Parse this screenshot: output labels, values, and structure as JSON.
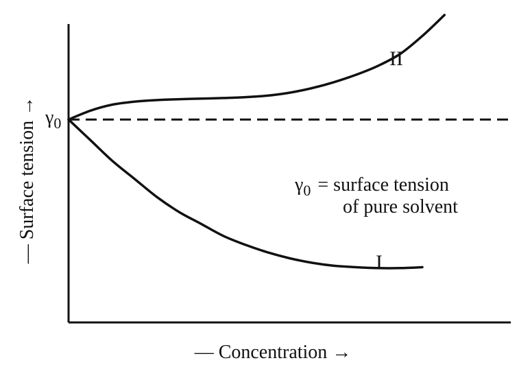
{
  "chart_data": {
    "type": "line",
    "title": "",
    "xlabel": "— Concentration →",
    "ylabel": "— Surface tension →",
    "xlim": [
      0,
      1
    ],
    "ylim": [
      0,
      1
    ],
    "grid": false,
    "reference_line": {
      "label": "γ",
      "label_subscript": "0",
      "y": 0.68,
      "style": "dashed"
    },
    "annotation": {
      "symbol": "γ",
      "subscript": "0",
      "text": "= surface tension",
      "text_line2": "of pure solvent"
    },
    "series": [
      {
        "name": "I",
        "x": [
          0,
          0.05,
          0.1,
          0.15,
          0.2,
          0.25,
          0.3,
          0.35,
          0.4,
          0.45,
          0.5,
          0.55,
          0.6,
          0.65,
          0.7,
          0.75,
          0.8
        ],
        "y": [
          0.68,
          0.61,
          0.54,
          0.48,
          0.42,
          0.37,
          0.33,
          0.29,
          0.26,
          0.235,
          0.215,
          0.2,
          0.19,
          0.185,
          0.182,
          0.182,
          0.185
        ]
      },
      {
        "name": "II",
        "x": [
          0,
          0.05,
          0.1,
          0.15,
          0.2,
          0.25,
          0.3,
          0.35,
          0.4,
          0.45,
          0.5,
          0.55,
          0.6,
          0.65,
          0.7,
          0.75,
          0.8,
          0.85
        ],
        "y": [
          0.68,
          0.71,
          0.73,
          0.74,
          0.745,
          0.748,
          0.75,
          0.752,
          0.755,
          0.76,
          0.77,
          0.785,
          0.805,
          0.83,
          0.86,
          0.9,
          0.96,
          1.03
        ]
      }
    ]
  }
}
